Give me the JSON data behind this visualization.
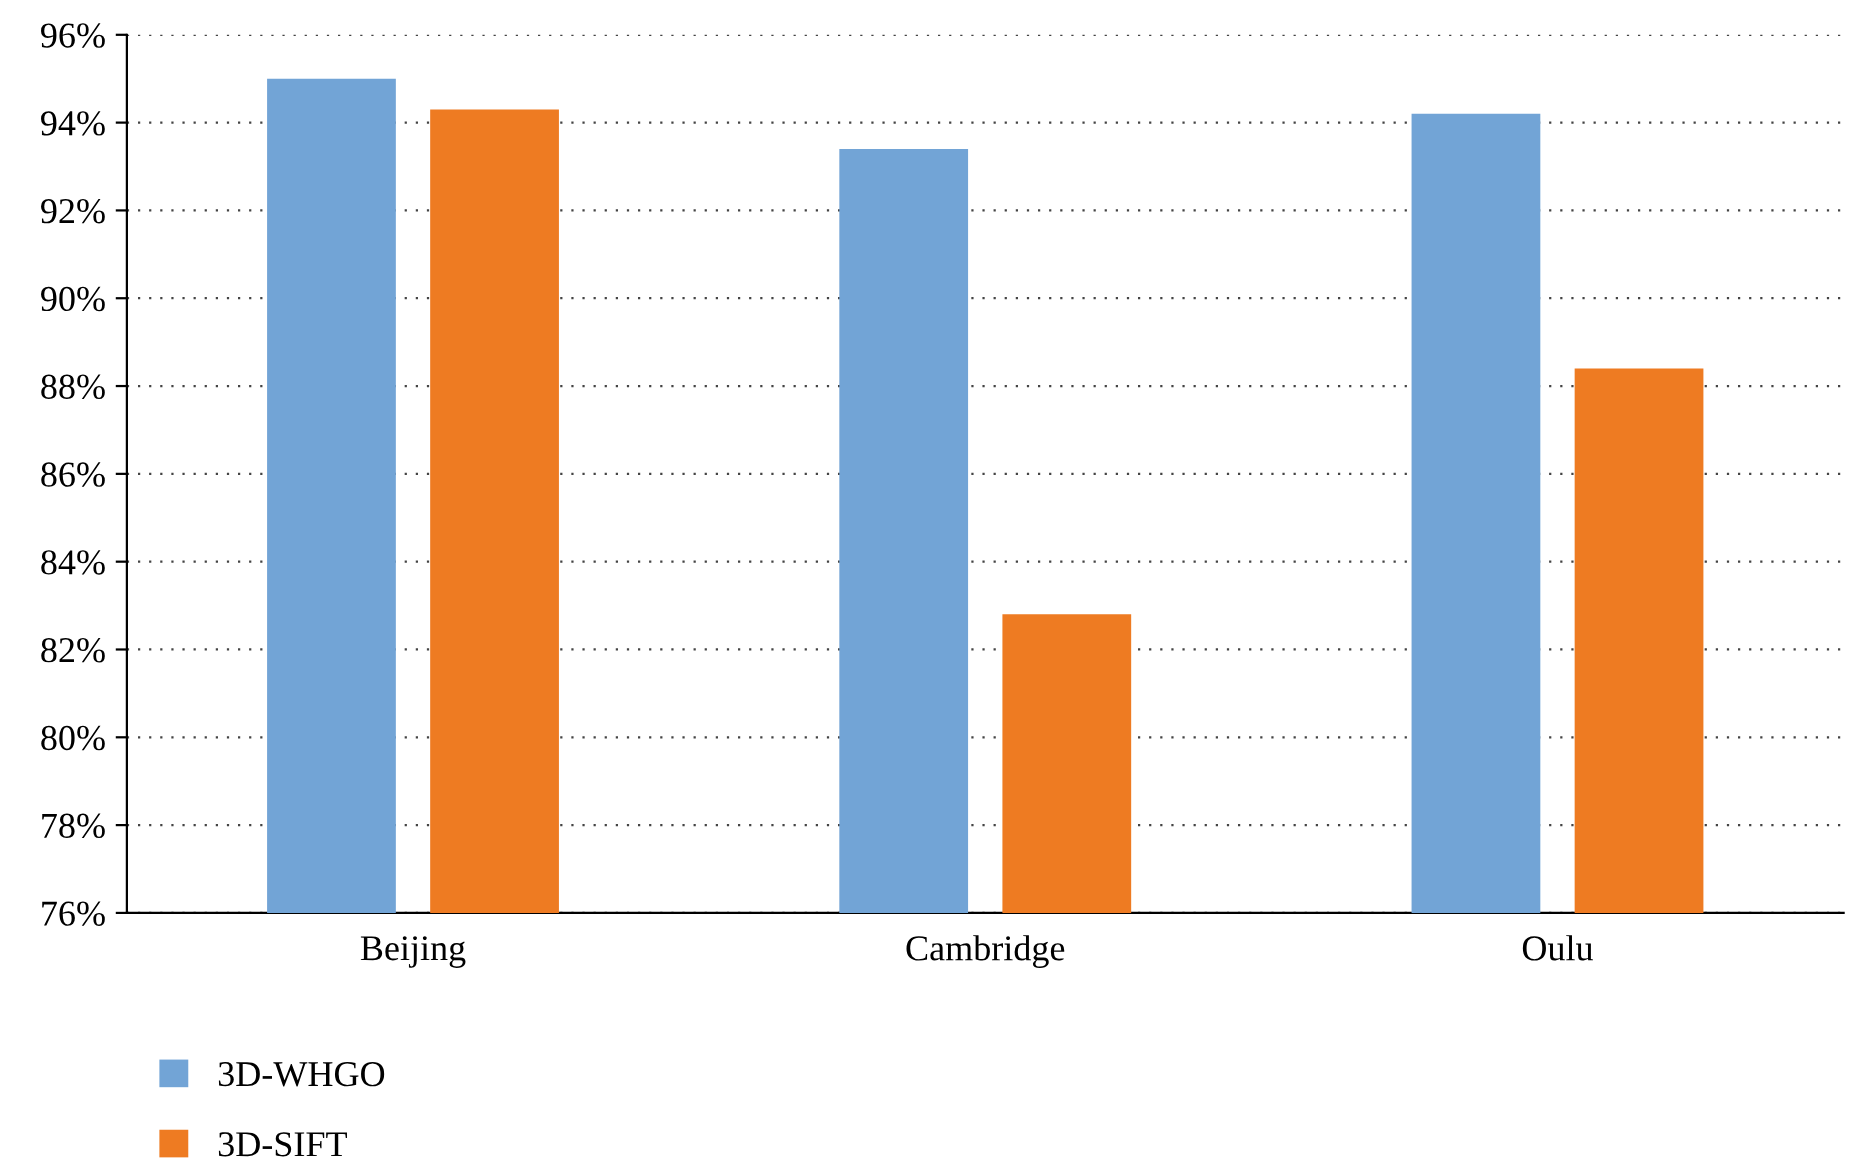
{
  "chart_data": {
    "type": "bar",
    "categories": [
      "Beijing",
      "Cambridge",
      "Oulu"
    ],
    "series": [
      {
        "name": "3D-WHGO",
        "color": "#72a4d6",
        "values": [
          95.0,
          93.4,
          94.2
        ]
      },
      {
        "name": "3D-SIFT",
        "color": "#ee7b22",
        "values": [
          94.3,
          82.8,
          88.4
        ]
      }
    ],
    "ylim": [
      76,
      96
    ],
    "yticks": [
      {
        "value": 76,
        "label": "76%"
      },
      {
        "value": 78,
        "label": "78%"
      },
      {
        "value": 80,
        "label": "80%"
      },
      {
        "value": 82,
        "label": "82%"
      },
      {
        "value": 84,
        "label": "84%"
      },
      {
        "value": 86,
        "label": "86%"
      },
      {
        "value": 88,
        "label": "88%"
      },
      {
        "value": 90,
        "label": "90%"
      },
      {
        "value": 92,
        "label": "92%"
      },
      {
        "value": 94,
        "label": "94%"
      },
      {
        "value": 96,
        "label": "96%"
      }
    ],
    "grid": "y",
    "legend": "bottom left"
  }
}
